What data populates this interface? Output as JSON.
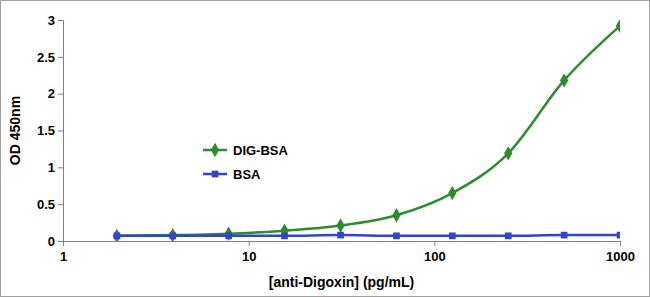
{
  "chart_data": {
    "type": "line",
    "x_label": "[anti-Digoxin] (pg/mL)",
    "y_label": "OD 450nm",
    "x": [
      1.95,
      3.9,
      7.8,
      15.6,
      31.25,
      62.5,
      125,
      250,
      500,
      1000
    ],
    "series": [
      {
        "name": "DIG-BSA",
        "color": "#2e8b2e",
        "marker": "diamond",
        "line_style": "smooth",
        "values": [
          0.07,
          0.08,
          0.1,
          0.14,
          0.21,
          0.35,
          0.65,
          1.19,
          2.18,
          2.92
        ]
      },
      {
        "name": "BSA",
        "color": "#3344cc",
        "marker": "square",
        "line_style": "smooth",
        "values": [
          0.07,
          0.07,
          0.07,
          0.07,
          0.08,
          0.07,
          0.07,
          0.07,
          0.08,
          0.08
        ]
      }
    ],
    "log": "x",
    "xlim": [
      1,
      1000
    ],
    "xticks": [
      1,
      10,
      100,
      1000
    ],
    "ylim": [
      0,
      3
    ],
    "yticks": [
      0,
      0.5,
      1,
      1.5,
      2,
      2.5,
      3
    ],
    "grid": false,
    "legend": "left"
  }
}
